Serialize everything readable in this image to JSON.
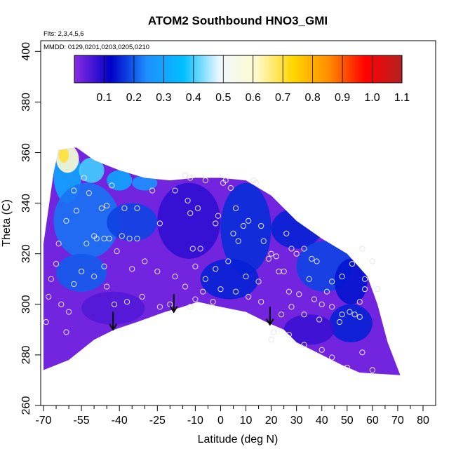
{
  "chart_data": {
    "type": "heatmap",
    "title": "ATOM2 Southbound HNO3_GMI",
    "flights_note": "Flts: 2,3,4,5,6",
    "dates_note": "MMDD: 0129,0201,0203,0205,0210",
    "xlabel": "Latitude (deg N)",
    "ylabel": "Theta (C)",
    "xlim": [
      -70,
      85
    ],
    "ylim": [
      260,
      402
    ],
    "x_ticks": [
      -70,
      -55,
      -40,
      -25,
      -10,
      0,
      10,
      20,
      30,
      40,
      50,
      60,
      70,
      80
    ],
    "x_tick_labels": [
      "-70",
      "-55",
      "-40",
      "-25",
      "-10",
      "0",
      "10",
      "20",
      "30",
      "40",
      "50",
      "60",
      "70",
      "80"
    ],
    "x_minor_ticks": [
      -65,
      -60,
      -50,
      -45,
      -35,
      -30,
      -20,
      -15,
      -5,
      5,
      15,
      25,
      35,
      45,
      55,
      65,
      75,
      85
    ],
    "y_ticks": [
      260,
      280,
      300,
      320,
      340,
      360,
      380,
      400
    ],
    "y_tick_labels": [
      "260",
      "280",
      "300",
      "320",
      "340",
      "360",
      "380",
      "400"
    ],
    "colorbar": {
      "min": 0,
      "max": 1.1,
      "ticks": [
        0.1,
        0.2,
        0.3,
        0.4,
        0.5,
        0.6,
        0.7,
        0.8,
        0.9,
        1.0,
        1.1
      ],
      "tick_labels": [
        "0.1",
        "0.2",
        "0.3",
        "0.4",
        "0.5",
        "0.6",
        "0.7",
        "0.8",
        "0.9",
        "1.0",
        "1.1"
      ],
      "colors": [
        "#8a2be2",
        "#0000c8",
        "#1e90ff",
        "#00bfff",
        "#f0f8ff",
        "#fffacd",
        "#ffd700",
        "#ff8c00",
        "#ff0000",
        "#b22222"
      ]
    },
    "field_bounds": {
      "upper": [
        [
          -70,
          324
        ],
        [
          -66,
          352
        ],
        [
          -64,
          361
        ],
        [
          -57,
          362
        ],
        [
          -50,
          357
        ],
        [
          -40,
          353
        ],
        [
          -30,
          350
        ],
        [
          -20,
          349
        ],
        [
          -10,
          350
        ],
        [
          0,
          350
        ],
        [
          10,
          349
        ],
        [
          20,
          343
        ],
        [
          30,
          333
        ],
        [
          40,
          326
        ],
        [
          50,
          320
        ],
        [
          58,
          311
        ],
        [
          62,
          300
        ],
        [
          66,
          285
        ],
        [
          71,
          272
        ]
      ],
      "lower": [
        [
          -70,
          274
        ],
        [
          -60,
          278
        ],
        [
          -50,
          286
        ],
        [
          -42,
          290
        ],
        [
          -33,
          293
        ],
        [
          -22,
          297
        ],
        [
          -15,
          299
        ],
        [
          -9,
          301
        ],
        [
          0,
          299
        ],
        [
          10,
          297
        ],
        [
          18,
          293
        ],
        [
          25,
          290
        ],
        [
          30,
          285
        ],
        [
          40,
          280
        ],
        [
          48,
          276
        ],
        [
          55,
          273
        ],
        [
          71,
          272
        ]
      ]
    },
    "field_regions": [
      {
        "lat": [
          -66,
          -55
        ],
        "theta": [
          340,
          362
        ],
        "value": 0.3
      },
      {
        "lat": [
          -65,
          -56
        ],
        "theta": [
          352,
          363
        ],
        "value": 0.6
      },
      {
        "lat": [
          -64,
          -60
        ],
        "theta": [
          356,
          362
        ],
        "value": 0.7
      },
      {
        "lat": [
          -56,
          -46
        ],
        "theta": [
          348,
          358
        ],
        "value": 0.4
      },
      {
        "lat": [
          -45,
          -35
        ],
        "theta": [
          345,
          353
        ],
        "value": 0.3
      },
      {
        "lat": [
          -35,
          -25
        ],
        "theta": [
          345,
          351
        ],
        "value": 0.25
      },
      {
        "lat": [
          -66,
          -40
        ],
        "theta": [
          318,
          348
        ],
        "value": 0.22
      },
      {
        "lat": [
          -45,
          -25
        ],
        "theta": [
          325,
          340
        ],
        "value": 0.18
      },
      {
        "lat": [
          -65,
          -45
        ],
        "theta": [
          305,
          320
        ],
        "value": 0.2
      },
      {
        "lat": [
          -25,
          0
        ],
        "theta": [
          318,
          348
        ],
        "value": 0.08
      },
      {
        "lat": [
          0,
          20
        ],
        "theta": [
          312,
          348
        ],
        "value": 0.16
      },
      {
        "lat": [
          -8,
          15
        ],
        "theta": [
          302,
          318
        ],
        "value": 0.15
      },
      {
        "lat": [
          20,
          40
        ],
        "theta": [
          322,
          338
        ],
        "value": 0.15
      },
      {
        "lat": [
          30,
          52
        ],
        "theta": [
          305,
          325
        ],
        "value": 0.18
      },
      {
        "lat": [
          43,
          60
        ],
        "theta": [
          285,
          300
        ],
        "value": 0.15
      },
      {
        "lat": [
          45,
          58
        ],
        "theta": [
          300,
          318
        ],
        "value": 0.14
      },
      {
        "lat": [
          -55,
          -30
        ],
        "theta": [
          292,
          305
        ],
        "value": 0.05
      },
      {
        "lat": [
          25,
          45
        ],
        "theta": [
          284,
          296
        ],
        "value": 0.07
      }
    ],
    "sample_points": [
      [
        -54,
        350
      ],
      [
        -52,
        344
      ],
      [
        -47,
        338
      ],
      [
        -45,
        339
      ],
      [
        -43,
        347
      ],
      [
        -38,
        338
      ],
      [
        -33,
        338
      ],
      [
        -57,
        337
      ],
      [
        -53,
        324
      ],
      [
        -50,
        327
      ],
      [
        -49,
        326
      ],
      [
        -46,
        326
      ],
      [
        -44,
        326
      ],
      [
        -41,
        321
      ],
      [
        -39,
        327
      ],
      [
        -36,
        326
      ],
      [
        -33,
        326
      ],
      [
        -27,
        345
      ],
      [
        -24,
        332
      ],
      [
        -18,
        345
      ],
      [
        -14,
        351
      ],
      [
        -12,
        350
      ],
      [
        -13,
        341
      ],
      [
        -12,
        336
      ],
      [
        -9,
        338
      ],
      [
        -8,
        322
      ],
      [
        -11,
        322
      ],
      [
        -10,
        315
      ],
      [
        -6,
        349
      ],
      [
        -2,
        332
      ],
      [
        -1,
        335
      ],
      [
        1,
        348
      ],
      [
        2,
        349
      ],
      [
        4,
        346
      ],
      [
        6,
        338
      ],
      [
        5,
        328
      ],
      [
        7,
        325
      ],
      [
        9,
        331
      ],
      [
        11,
        333
      ],
      [
        13,
        349
      ],
      [
        14,
        348
      ],
      [
        16,
        331
      ],
      [
        17,
        325
      ],
      [
        20,
        320
      ],
      [
        22,
        319
      ],
      [
        19,
        318
      ],
      [
        23,
        313
      ],
      [
        26,
        328
      ],
      [
        28,
        322
      ],
      [
        30,
        320
      ],
      [
        33,
        322
      ],
      [
        36,
        318
      ],
      [
        38,
        317
      ],
      [
        35,
        310
      ],
      [
        27,
        305
      ],
      [
        25,
        313
      ],
      [
        31,
        304
      ],
      [
        37,
        302
      ],
      [
        42,
        305
      ],
      [
        44,
        299
      ],
      [
        47,
        293
      ],
      [
        48,
        296
      ],
      [
        51,
        297
      ],
      [
        53,
        296
      ],
      [
        55,
        301
      ],
      [
        55,
        295
      ],
      [
        57,
        306
      ],
      [
        57,
        310
      ],
      [
        56,
        322
      ],
      [
        52,
        316
      ],
      [
        48,
        311
      ],
      [
        44,
        309
      ],
      [
        40,
        300
      ],
      [
        39,
        294
      ],
      [
        33,
        296
      ],
      [
        28,
        299
      ],
      [
        24,
        296
      ],
      [
        21,
        289
      ],
      [
        16,
        301
      ],
      [
        11,
        303
      ],
      [
        6,
        305
      ],
      [
        0,
        306
      ],
      [
        -3,
        301
      ],
      [
        -7,
        305
      ],
      [
        -10,
        302
      ],
      [
        -12,
        299
      ],
      [
        -20,
        300
      ],
      [
        -24,
        299
      ],
      [
        -31,
        303
      ],
      [
        -37,
        301
      ],
      [
        -42,
        300
      ],
      [
        -45,
        307
      ],
      [
        -50,
        311
      ],
      [
        -55,
        313
      ],
      [
        -58,
        308
      ],
      [
        -60,
        297
      ],
      [
        -61,
        289
      ],
      [
        -63,
        300
      ],
      [
        -65,
        316
      ],
      [
        -67,
        310
      ],
      [
        -68,
        303
      ],
      [
        -69,
        293
      ],
      [
        -58,
        345
      ],
      [
        -61,
        333
      ],
      [
        -64,
        324
      ],
      [
        -46,
        315
      ],
      [
        -35,
        314
      ],
      [
        -30,
        317
      ],
      [
        -25,
        313
      ],
      [
        -18,
        311
      ],
      [
        -14,
        307
      ],
      [
        -6,
        310
      ],
      [
        -2,
        314
      ],
      [
        3,
        317
      ],
      [
        10,
        311
      ],
      [
        15,
        309
      ],
      [
        60,
        317
      ],
      [
        62,
        306
      ],
      [
        20,
        286
      ],
      [
        27,
        288
      ],
      [
        33,
        284
      ],
      [
        40,
        282
      ],
      [
        44,
        279
      ],
      [
        50,
        275
      ],
      [
        56,
        281
      ],
      [
        60,
        274
      ]
    ],
    "arrows": [
      {
        "lat": -42.5,
        "theta_top": 297,
        "theta_tip": 290
      },
      {
        "lat": -18.5,
        "theta_top": 304,
        "theta_tip": 297
      },
      {
        "lat": 19.5,
        "theta_top": 299,
        "theta_tip": 292
      }
    ]
  }
}
